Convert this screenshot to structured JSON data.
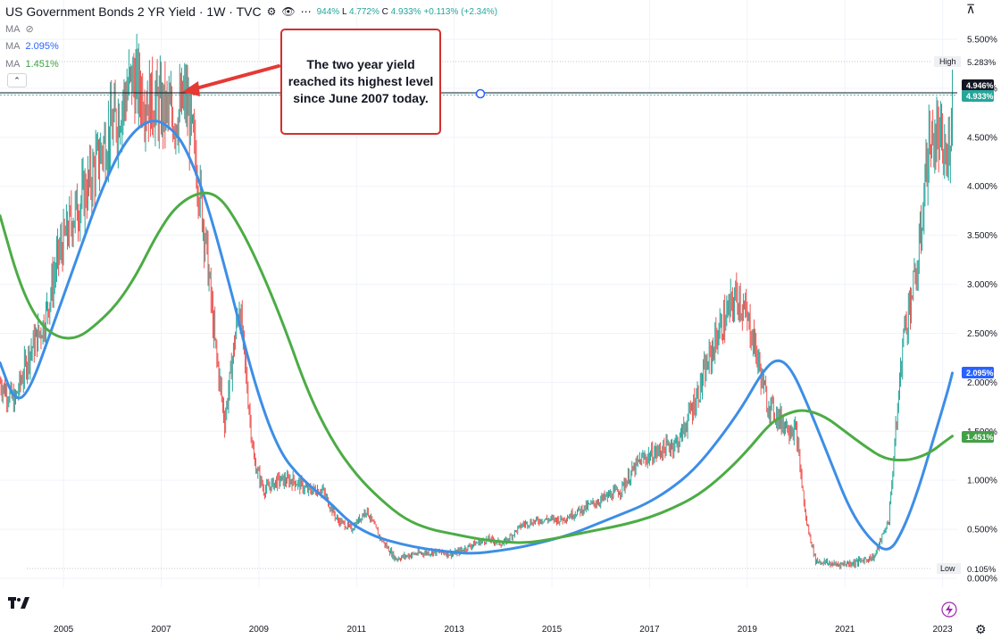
{
  "header": {
    "title": "US Government Bonds 2 YR Yield · 1W · TVC",
    "ohlc_partial": "944%",
    "low_label": "L",
    "low_value": "4.772%",
    "close_label": "C",
    "close_value": "4.933%",
    "change": "+0.113% (+2.34%)"
  },
  "indicators": [
    {
      "label": "MA",
      "value": ""
    },
    {
      "label": "MA",
      "value": "2.095%"
    },
    {
      "label": "MA",
      "value": "1.451%"
    }
  ],
  "annotation": {
    "text": "The two year yield reached its highest level since June 2007 today."
  },
  "price_tags": {
    "high_label": "High",
    "high_value": "5.283%",
    "low_label": "Low",
    "low_value": "0.105%",
    "crosshair_value": "4.946%",
    "last_value": "4.933%",
    "ma_blue_value": "2.095%",
    "ma_green_value": "1.451%"
  },
  "colors": {
    "ma_blue": "#2962ff",
    "ma_blue_line": "#3d8ee6",
    "ma_green": "#43a047",
    "ma_green_line": "#4cac45",
    "candle_up": "#26a69a",
    "candle_down": "#ef5350",
    "callout_border": "#d32f2f",
    "arrow": "#e53935"
  },
  "chart_data": {
    "type": "line",
    "title": "US Government Bonds 2 YR Yield",
    "xlabel": "",
    "ylabel": "",
    "x_ticks": [
      "2005",
      "2007",
      "2009",
      "2011",
      "2013",
      "2015",
      "2017",
      "2019",
      "2021",
      "2023"
    ],
    "y_ticks": [
      "5.500%",
      "5.000%",
      "4.500%",
      "4.000%",
      "3.500%",
      "3.000%",
      "2.500%",
      "2.000%",
      "1.500%",
      "1.000%",
      "0.500%",
      "0.000%"
    ],
    "xlim": [
      2003.7,
      2023.3
    ],
    "ylim": [
      0,
      5.5
    ],
    "grid": true,
    "series": [
      {
        "name": "US Government Bonds 2 YR Yield",
        "x": [
          2003.7,
          2004.0,
          2004.3,
          2004.6,
          2004.9,
          2005.2,
          2005.5,
          2005.8,
          2006.1,
          2006.4,
          2006.7,
          2007.0,
          2007.3,
          2007.5,
          2007.7,
          2007.9,
          2008.1,
          2008.3,
          2008.6,
          2008.9,
          2009.1,
          2009.4,
          2009.7,
          2010.0,
          2010.3,
          2010.6,
          2010.9,
          2011.2,
          2011.5,
          2011.8,
          2012.2,
          2012.6,
          2013.0,
          2013.4,
          2013.7,
          2014.0,
          2014.4,
          2014.8,
          2015.2,
          2015.6,
          2016.0,
          2016.4,
          2016.8,
          2017.2,
          2017.6,
          2018.0,
          2018.4,
          2018.8,
          2019.1,
          2019.4,
          2019.7,
          2020.0,
          2020.2,
          2020.4,
          2020.8,
          2021.2,
          2021.6,
          2021.9,
          2022.2,
          2022.5,
          2022.7,
          2022.9,
          2023.1,
          2023.2
        ],
        "values": [
          2.0,
          1.8,
          2.3,
          2.6,
          3.3,
          3.7,
          4.0,
          4.4,
          4.7,
          5.1,
          4.9,
          4.8,
          4.7,
          4.9,
          4.3,
          3.5,
          2.4,
          1.6,
          2.8,
          1.2,
          0.9,
          1.0,
          1.0,
          0.9,
          0.9,
          0.6,
          0.5,
          0.7,
          0.4,
          0.2,
          0.25,
          0.27,
          0.25,
          0.35,
          0.4,
          0.35,
          0.55,
          0.6,
          0.6,
          0.7,
          0.8,
          0.9,
          1.2,
          1.3,
          1.4,
          1.9,
          2.5,
          2.9,
          2.5,
          1.8,
          1.6,
          1.5,
          0.6,
          0.18,
          0.14,
          0.16,
          0.22,
          0.6,
          2.5,
          3.2,
          4.4,
          4.5,
          4.2,
          4.933
        ]
      },
      {
        "name": "MA",
        "x": [
          2003.7,
          2004.0,
          2004.3,
          2004.8,
          2005.3,
          2005.8,
          2006.3,
          2006.8,
          2007.2,
          2007.5,
          2007.9,
          2008.4,
          2008.9,
          2009.4,
          2009.9,
          2010.4,
          2010.9,
          2011.4,
          2011.9,
          2012.4,
          2012.9,
          2013.4,
          2013.9,
          2014.4,
          2014.9,
          2015.4,
          2015.9,
          2016.4,
          2016.9,
          2017.4,
          2017.9,
          2018.4,
          2018.9,
          2019.3,
          2019.6,
          2019.9,
          2020.3,
          2020.7,
          2021.1,
          2021.5,
          2021.9,
          2022.2,
          2022.5,
          2022.8,
          2023.1,
          2023.2
        ],
        "values": [
          2.2,
          1.8,
          1.9,
          2.6,
          3.3,
          4.0,
          4.5,
          4.7,
          4.6,
          4.4,
          3.9,
          3.0,
          2.0,
          1.3,
          1.0,
          0.8,
          0.55,
          0.42,
          0.35,
          0.3,
          0.27,
          0.25,
          0.28,
          0.32,
          0.38,
          0.45,
          0.55,
          0.65,
          0.75,
          0.9,
          1.1,
          1.4,
          1.75,
          2.1,
          2.25,
          2.15,
          1.7,
          1.2,
          0.7,
          0.4,
          0.25,
          0.5,
          0.9,
          1.4,
          1.9,
          2.095
        ]
      },
      {
        "name": "MA",
        "x": [
          2003.7,
          2004.1,
          2004.5,
          2004.9,
          2005.3,
          2005.7,
          2006.1,
          2006.5,
          2006.9,
          2007.3,
          2007.8,
          2008.2,
          2008.6,
          2009.0,
          2009.5,
          2010.0,
          2010.5,
          2011.0,
          2011.5,
          2012.0,
          2012.5,
          2013.0,
          2013.5,
          2014.0,
          2014.5,
          2015.0,
          2015.5,
          2016.0,
          2016.5,
          2017.0,
          2017.5,
          2018.0,
          2018.5,
          2019.0,
          2019.5,
          2019.9,
          2020.2,
          2020.6,
          2021.0,
          2021.4,
          2021.8,
          2022.2,
          2022.5,
          2022.8,
          2023.0,
          2023.2
        ],
        "values": [
          3.7,
          3.0,
          2.6,
          2.45,
          2.45,
          2.6,
          2.8,
          3.1,
          3.5,
          3.8,
          3.95,
          3.9,
          3.6,
          3.2,
          2.6,
          1.9,
          1.4,
          1.05,
          0.8,
          0.6,
          0.5,
          0.45,
          0.4,
          0.37,
          0.36,
          0.4,
          0.45,
          0.5,
          0.55,
          0.62,
          0.72,
          0.85,
          1.05,
          1.3,
          1.6,
          1.7,
          1.72,
          1.65,
          1.5,
          1.35,
          1.22,
          1.2,
          1.23,
          1.3,
          1.38,
          1.451
        ]
      }
    ]
  }
}
